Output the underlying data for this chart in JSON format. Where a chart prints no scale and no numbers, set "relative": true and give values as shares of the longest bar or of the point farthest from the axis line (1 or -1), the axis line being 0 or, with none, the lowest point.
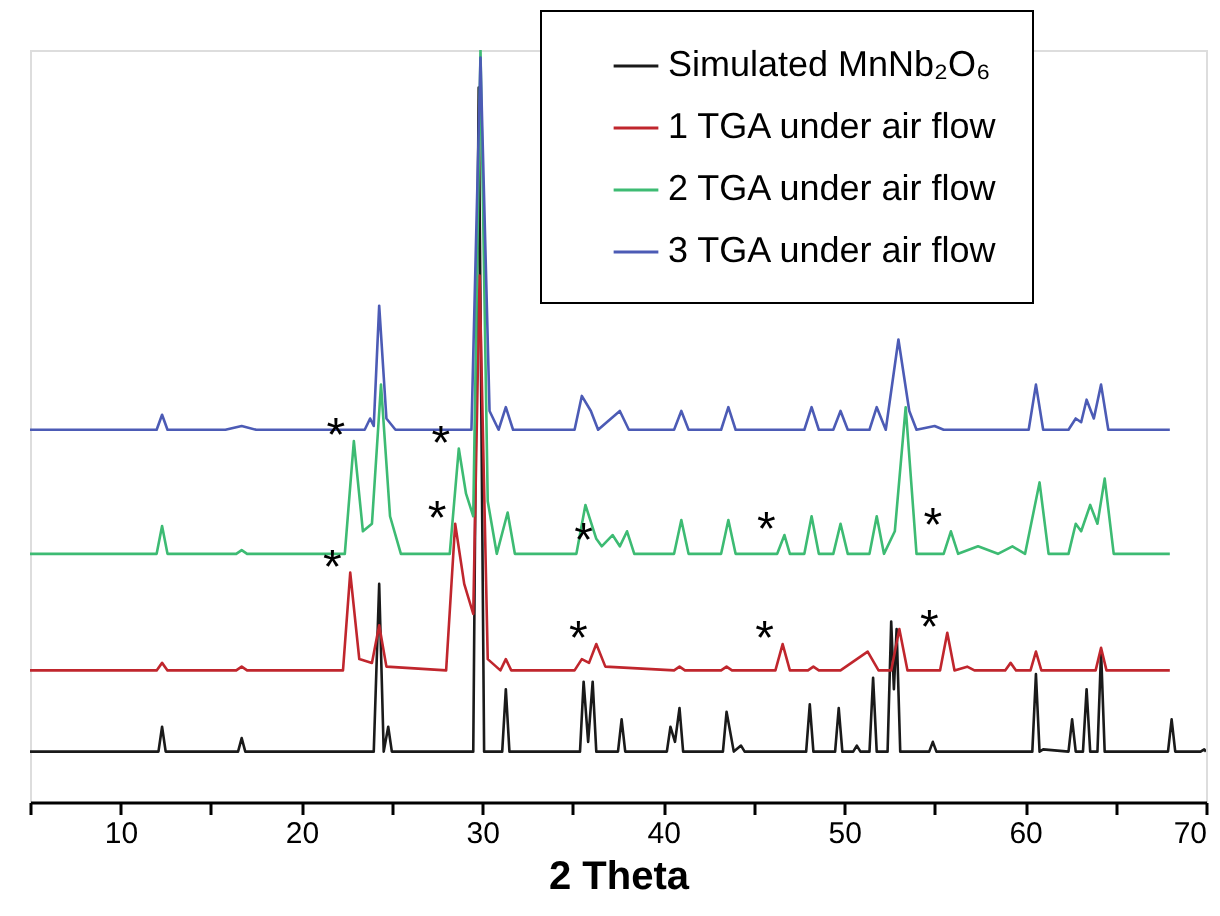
{
  "chart_data": {
    "type": "line",
    "relative": true,
    "xlabel": "2 Theta",
    "xlim": [
      5,
      70
    ],
    "xticks": [
      {
        "value": 5,
        "label": null
      },
      10,
      {
        "value": 15,
        "label": null
      },
      20,
      {
        "value": 25,
        "label": null
      },
      30,
      {
        "value": 35,
        "label": null
      },
      40,
      {
        "value": 45,
        "label": null
      },
      50,
      {
        "value": 55,
        "label": null
      },
      60,
      {
        "value": 65,
        "label": null
      },
      70
    ],
    "tick_labels": "x",
    "grid": false,
    "legend": "top right",
    "marker": "none",
    "line_style": "solid",
    "series": [
      {
        "name": "Simulated MnNb₂O₆",
        "color": "#1a1a1a",
        "x": [
          5,
          12.1,
          12.3,
          12.5,
          16.5,
          16.7,
          16.9,
          24.0,
          24.3,
          24.55,
          24.8,
          25.0,
          29.5,
          29.8,
          30.1,
          31.1,
          31.3,
          31.5,
          35.4,
          35.6,
          35.85,
          36.1,
          36.3,
          37.5,
          37.7,
          37.9,
          40.2,
          40.4,
          40.65,
          40.9,
          41.1,
          43.3,
          43.5,
          43.9,
          44.3,
          44.5,
          47.9,
          48.1,
          48.3,
          49.5,
          49.7,
          49.9,
          50.5,
          50.7,
          50.9,
          51.4,
          51.6,
          51.8,
          52.4,
          52.6,
          52.75,
          52.9,
          53.1,
          54.7,
          54.9,
          55.1,
          60.4,
          60.6,
          60.8,
          61.0,
          62.4,
          62.6,
          62.8,
          63.2,
          63.4,
          63.6,
          64.0,
          64.2,
          64.4,
          67.9,
          68.1,
          68.3,
          69.7,
          69.9,
          70
        ],
        "values": [
          0.067,
          0.067,
          0.1,
          0.067,
          0.067,
          0.085,
          0.067,
          0.067,
          0.29,
          0.067,
          0.1,
          0.067,
          0.067,
          0.95,
          0.067,
          0.067,
          0.15,
          0.067,
          0.067,
          0.16,
          0.08,
          0.16,
          0.067,
          0.067,
          0.11,
          0.067,
          0.067,
          0.1,
          0.08,
          0.125,
          0.067,
          0.067,
          0.12,
          0.067,
          0.075,
          0.067,
          0.067,
          0.13,
          0.067,
          0.067,
          0.125,
          0.067,
          0.067,
          0.075,
          0.067,
          0.067,
          0.165,
          0.067,
          0.067,
          0.24,
          0.15,
          0.23,
          0.067,
          0.067,
          0.08,
          0.067,
          0.067,
          0.17,
          0.067,
          0.07,
          0.067,
          0.11,
          0.067,
          0.067,
          0.15,
          0.067,
          0.067,
          0.2,
          0.067,
          0.067,
          0.11,
          0.067,
          0.067,
          0.07,
          0.067
        ]
      },
      {
        "name": "1 TGA under air flow",
        "color": "#c0262d",
        "x": [
          5,
          12.0,
          12.3,
          12.6,
          16.4,
          16.7,
          17.0,
          22.3,
          22.7,
          23.2,
          23.9,
          24.3,
          24.7,
          28.0,
          28.5,
          29.0,
          29.5,
          29.85,
          30.3,
          31.0,
          31.3,
          31.6,
          35.1,
          35.5,
          35.9,
          36.3,
          36.8,
          40.6,
          40.9,
          41.2,
          43.2,
          43.5,
          43.8,
          46.2,
          46.6,
          47.0,
          48.0,
          48.3,
          48.6,
          49.8,
          50.1,
          51.3,
          51.9,
          52.6,
          53.05,
          53.5,
          55.3,
          55.7,
          56.1,
          56.8,
          57.2,
          58.9,
          59.2,
          59.5,
          60.3,
          60.6,
          60.9,
          63.9,
          64.2,
          64.5,
          68
        ],
        "values": [
          0.175,
          0.175,
          0.185,
          0.175,
          0.175,
          0.18,
          0.175,
          0.175,
          0.305,
          0.19,
          0.185,
          0.235,
          0.18,
          0.175,
          0.37,
          0.29,
          0.25,
          0.7,
          0.19,
          0.175,
          0.19,
          0.175,
          0.175,
          0.19,
          0.185,
          0.21,
          0.18,
          0.175,
          0.18,
          0.175,
          0.175,
          0.18,
          0.175,
          0.175,
          0.21,
          0.175,
          0.175,
          0.18,
          0.175,
          0.175,
          0.18,
          0.2,
          0.175,
          0.175,
          0.23,
          0.175,
          0.175,
          0.225,
          0.175,
          0.18,
          0.175,
          0.175,
          0.185,
          0.175,
          0.175,
          0.2,
          0.175,
          0.175,
          0.205,
          0.175,
          0.175
        ]
      },
      {
        "name": "2 TGA under air flow",
        "color": "#3dbb73",
        "x": [
          5,
          12.0,
          12.3,
          12.6,
          16.4,
          16.7,
          17.0,
          22.4,
          22.9,
          23.4,
          23.9,
          24.4,
          24.9,
          25.5,
          28.2,
          28.7,
          29.1,
          29.5,
          29.9,
          30.3,
          30.8,
          31.4,
          31.8,
          35.2,
          35.7,
          36.3,
          36.6,
          37.2,
          37.6,
          38.0,
          38.4,
          40.6,
          41.0,
          41.4,
          43.2,
          43.6,
          44.0,
          46.3,
          46.7,
          47.0,
          47.8,
          48.2,
          48.6,
          49.4,
          49.8,
          50.2,
          51.4,
          51.8,
          52.2,
          52.8,
          53.4,
          54.0,
          55.5,
          55.9,
          56.3,
          57.4,
          58.5,
          59.3,
          60.0,
          60.8,
          61.3,
          62.4,
          62.8,
          63.1,
          63.6,
          64.0,
          64.4,
          64.9,
          68
        ],
        "values": [
          0.33,
          0.33,
          0.367,
          0.33,
          0.33,
          0.335,
          0.33,
          0.33,
          0.48,
          0.36,
          0.37,
          0.555,
          0.38,
          0.33,
          0.33,
          0.47,
          0.41,
          0.38,
          1.0,
          0.4,
          0.33,
          0.385,
          0.33,
          0.33,
          0.395,
          0.35,
          0.34,
          0.355,
          0.34,
          0.36,
          0.33,
          0.33,
          0.375,
          0.33,
          0.33,
          0.375,
          0.33,
          0.33,
          0.355,
          0.33,
          0.33,
          0.38,
          0.33,
          0.33,
          0.37,
          0.33,
          0.33,
          0.38,
          0.33,
          0.36,
          0.525,
          0.33,
          0.33,
          0.36,
          0.33,
          0.34,
          0.33,
          0.34,
          0.33,
          0.425,
          0.33,
          0.33,
          0.37,
          0.36,
          0.395,
          0.37,
          0.43,
          0.33,
          0.33
        ]
      },
      {
        "name": "3 TGA under air flow",
        "color": "#4c5bb5",
        "x": [
          5,
          12.0,
          12.3,
          12.6,
          15.8,
          16.7,
          17.5,
          23.5,
          23.8,
          24.0,
          24.3,
          24.7,
          25.2,
          29.4,
          29.9,
          30.4,
          30.9,
          31.3,
          31.7,
          35.1,
          35.5,
          36.0,
          36.4,
          37.6,
          38.1,
          40.6,
          41.0,
          41.4,
          43.2,
          43.6,
          44.0,
          47.8,
          48.2,
          48.6,
          49.4,
          49.8,
          50.2,
          51.4,
          51.8,
          52.3,
          53.0,
          53.6,
          54.0,
          55.0,
          55.5,
          60.2,
          60.6,
          61.0,
          62.4,
          62.8,
          63.1,
          63.4,
          63.8,
          64.2,
          64.6,
          68
        ],
        "values": [
          0.495,
          0.495,
          0.515,
          0.495,
          0.495,
          0.5,
          0.495,
          0.495,
          0.51,
          0.5,
          0.66,
          0.51,
          0.495,
          0.495,
          0.99,
          0.52,
          0.495,
          0.525,
          0.495,
          0.495,
          0.54,
          0.52,
          0.495,
          0.52,
          0.495,
          0.495,
          0.52,
          0.495,
          0.495,
          0.525,
          0.495,
          0.495,
          0.525,
          0.495,
          0.495,
          0.52,
          0.495,
          0.495,
          0.525,
          0.495,
          0.615,
          0.52,
          0.495,
          0.5,
          0.495,
          0.495,
          0.555,
          0.495,
          0.495,
          0.51,
          0.505,
          0.535,
          0.51,
          0.555,
          0.495,
          0.495
        ]
      }
    ],
    "annotations": [
      {
        "text": "*",
        "x": 22.9,
        "y": 0.48
      },
      {
        "text": "*",
        "x": 28.7,
        "y": 0.47
      },
      {
        "text": "*",
        "x": 36.6,
        "y": 0.34
      },
      {
        "text": "*",
        "x": 46.7,
        "y": 0.355
      },
      {
        "text": "*",
        "x": 55.9,
        "y": 0.36
      },
      {
        "text": "*",
        "x": 22.7,
        "y": 0.305
      },
      {
        "text": "*",
        "x": 28.5,
        "y": 0.37
      },
      {
        "text": "*",
        "x": 36.3,
        "y": 0.21
      },
      {
        "text": "*",
        "x": 46.6,
        "y": 0.21
      },
      {
        "text": "*",
        "x": 55.7,
        "y": 0.225
      }
    ]
  }
}
